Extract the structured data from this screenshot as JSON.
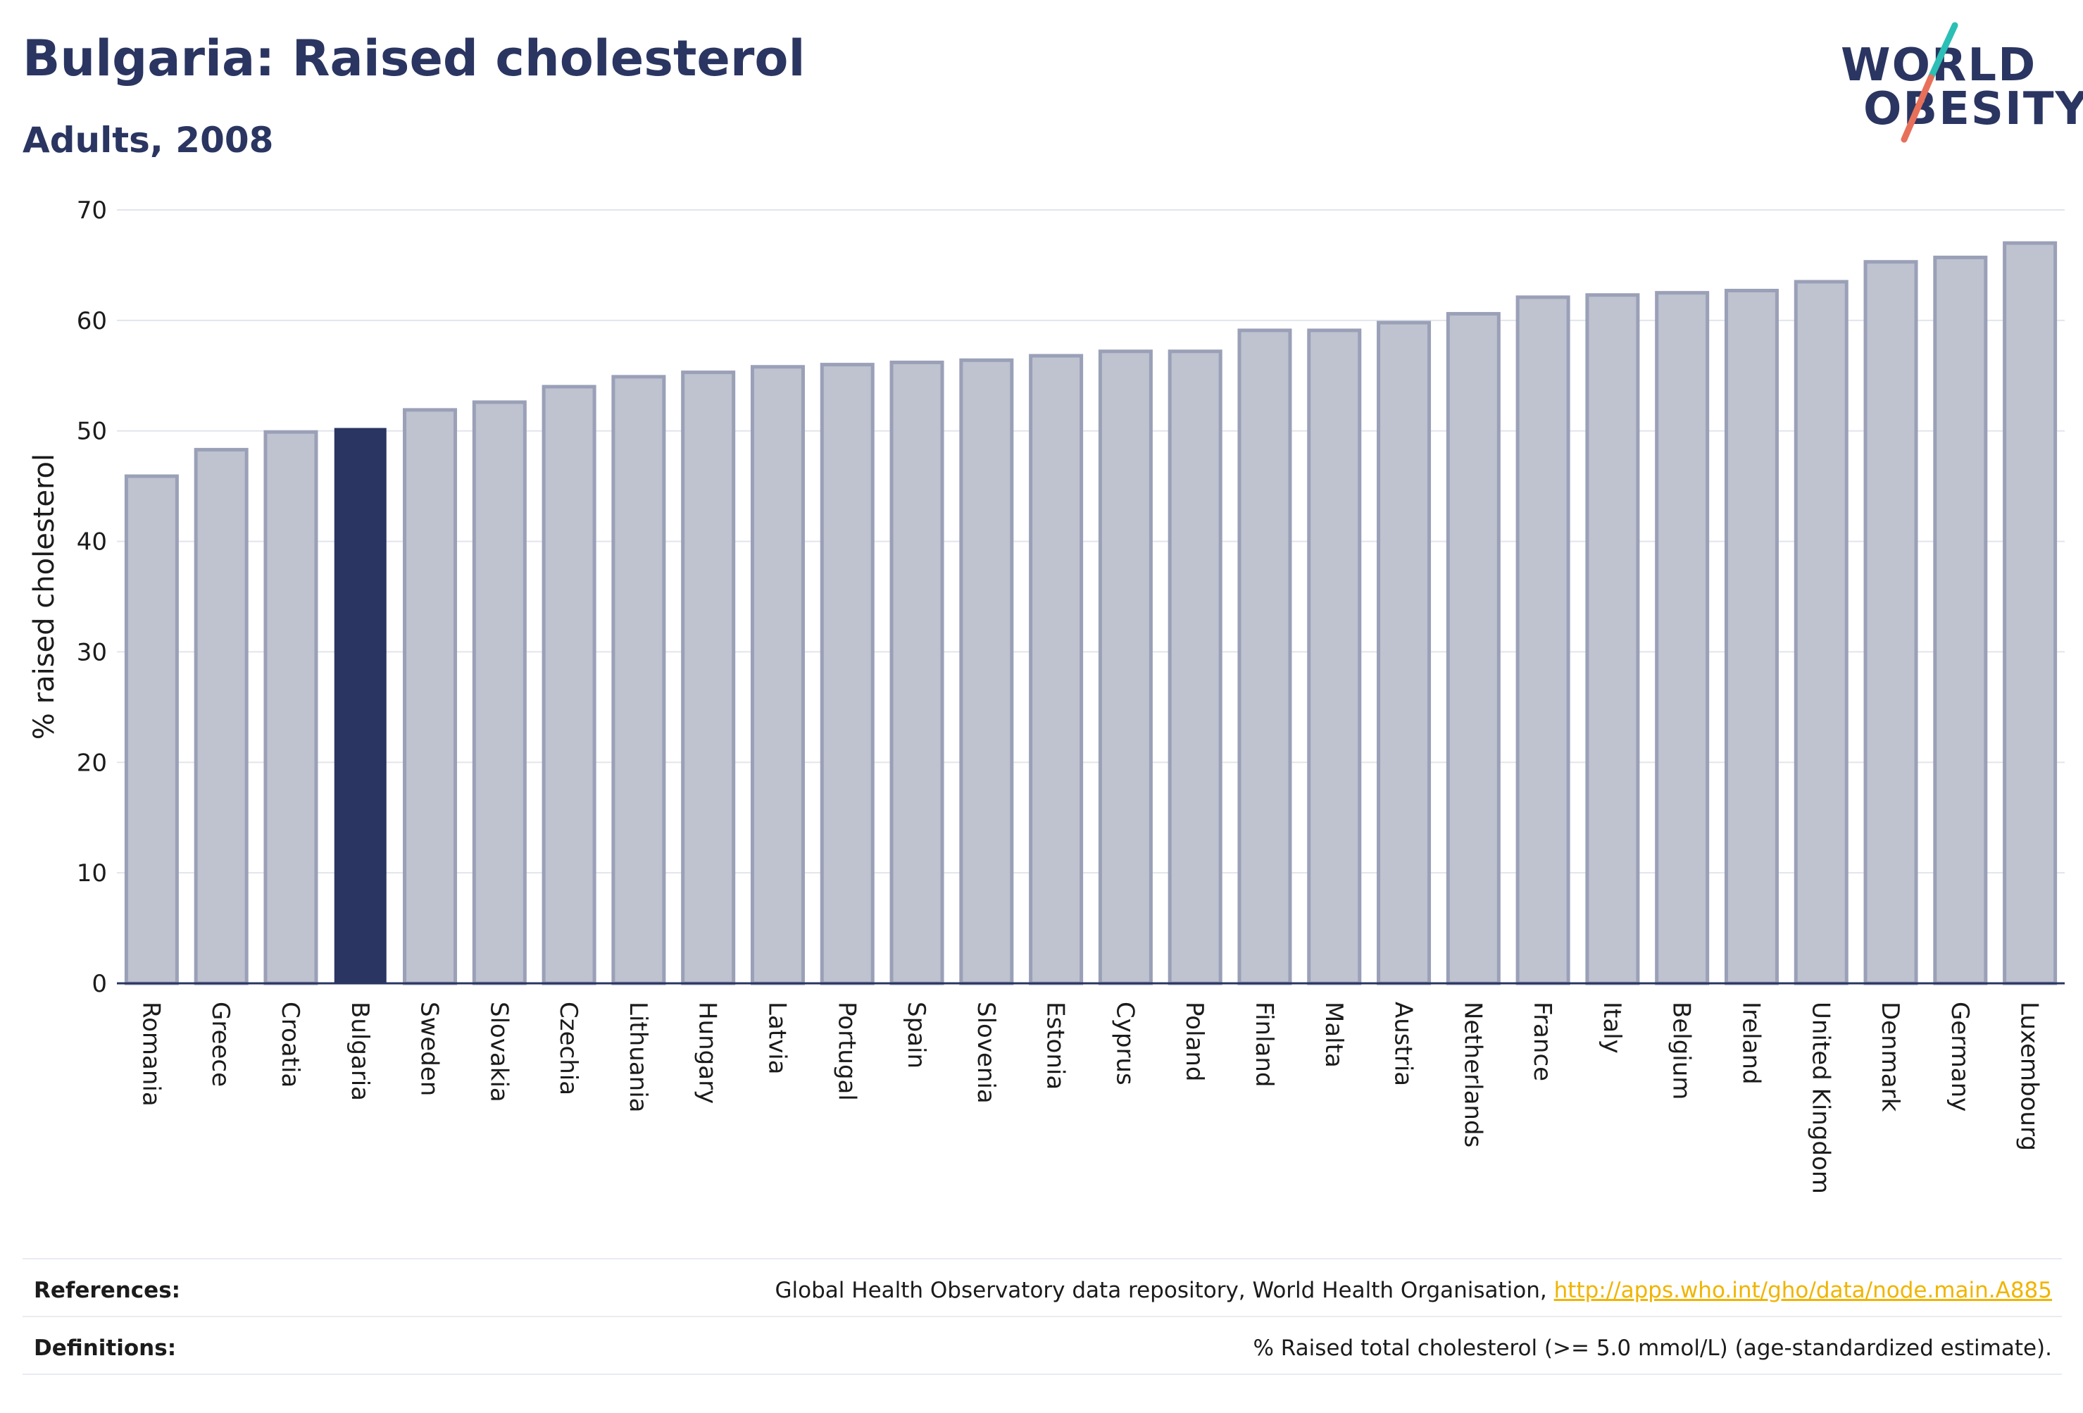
{
  "header": {
    "title": "Bulgaria: Raised cholesterol",
    "subtitle": "Adults, 2008"
  },
  "logo": {
    "line1": "WORLD",
    "line2": "OBESITY",
    "slash_colors": [
      "#2bbfb5",
      "#e8705a"
    ]
  },
  "colors": {
    "highlight": "#2a3561",
    "bar_fill": "#bfc2cf",
    "bar_stroke": "#9aa0b7",
    "text": "#2a3561",
    "link": "#f0b400"
  },
  "chart_data": {
    "type": "bar",
    "ylabel": "% raised cholesterol",
    "xlabel": "",
    "ylim": [
      0,
      70
    ],
    "yticks": [
      0,
      10,
      20,
      30,
      40,
      50,
      60,
      70
    ],
    "grid": true,
    "highlight": "Bulgaria",
    "categories": [
      "Romania",
      "Greece",
      "Croatia",
      "Bulgaria",
      "Sweden",
      "Slovakia",
      "Czechia",
      "Lithuania",
      "Hungary",
      "Latvia",
      "Portugal",
      "Spain",
      "Slovenia",
      "Estonia",
      "Cyprus",
      "Poland",
      "Finland",
      "Malta",
      "Austria",
      "Netherlands",
      "France",
      "Italy",
      "Belgium",
      "Ireland",
      "United Kingdom",
      "Denmark",
      "Germany",
      "Luxembourg"
    ],
    "values": [
      45.9,
      48.3,
      49.9,
      50.2,
      51.9,
      52.6,
      54.0,
      54.9,
      55.3,
      55.8,
      56.0,
      56.2,
      56.4,
      56.8,
      57.2,
      57.2,
      59.1,
      59.1,
      59.8,
      60.6,
      62.1,
      62.3,
      62.5,
      62.7,
      63.5,
      65.3,
      65.7,
      67.0
    ]
  },
  "footer": {
    "references_label": "References:",
    "references_text": "Global Health Observatory data repository, World Health Organisation, ",
    "references_link": "http://apps.who.int/gho/data/node.main.A885",
    "definitions_label": "Definitions:",
    "definitions_text": "% Raised total cholesterol (>= 5.0 mmol/L) (age-standardized estimate)."
  }
}
